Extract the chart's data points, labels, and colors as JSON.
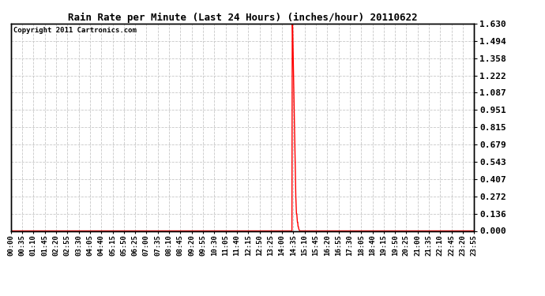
{
  "title": "Rain Rate per Minute (Last 24 Hours) (inches/hour) 20110622",
  "copyright": "Copyright 2011 Cartronics.com",
  "background_color": "#ffffff",
  "plot_bg_color": "#ffffff",
  "line_color": "#ff0000",
  "grid_color": "#c8c8c8",
  "y_ticks": [
    0.0,
    0.136,
    0.272,
    0.407,
    0.543,
    0.679,
    0.815,
    0.951,
    1.087,
    1.222,
    1.358,
    1.494,
    1.63
  ],
  "x_tick_labels": [
    "00:00",
    "00:35",
    "01:10",
    "01:45",
    "02:20",
    "02:55",
    "03:30",
    "04:05",
    "04:40",
    "05:15",
    "05:50",
    "06:25",
    "07:00",
    "07:35",
    "08:10",
    "08:45",
    "09:20",
    "09:55",
    "10:30",
    "11:05",
    "11:40",
    "12:15",
    "12:50",
    "13:25",
    "14:00",
    "14:35",
    "15:10",
    "15:45",
    "16:20",
    "16:55",
    "17:30",
    "18:05",
    "18:40",
    "19:15",
    "19:50",
    "20:25",
    "21:00",
    "21:35",
    "22:10",
    "22:45",
    "23:20",
    "23:55"
  ],
  "peak_value": 1.63,
  "total_points": 1440,
  "peak_minute": 875
}
